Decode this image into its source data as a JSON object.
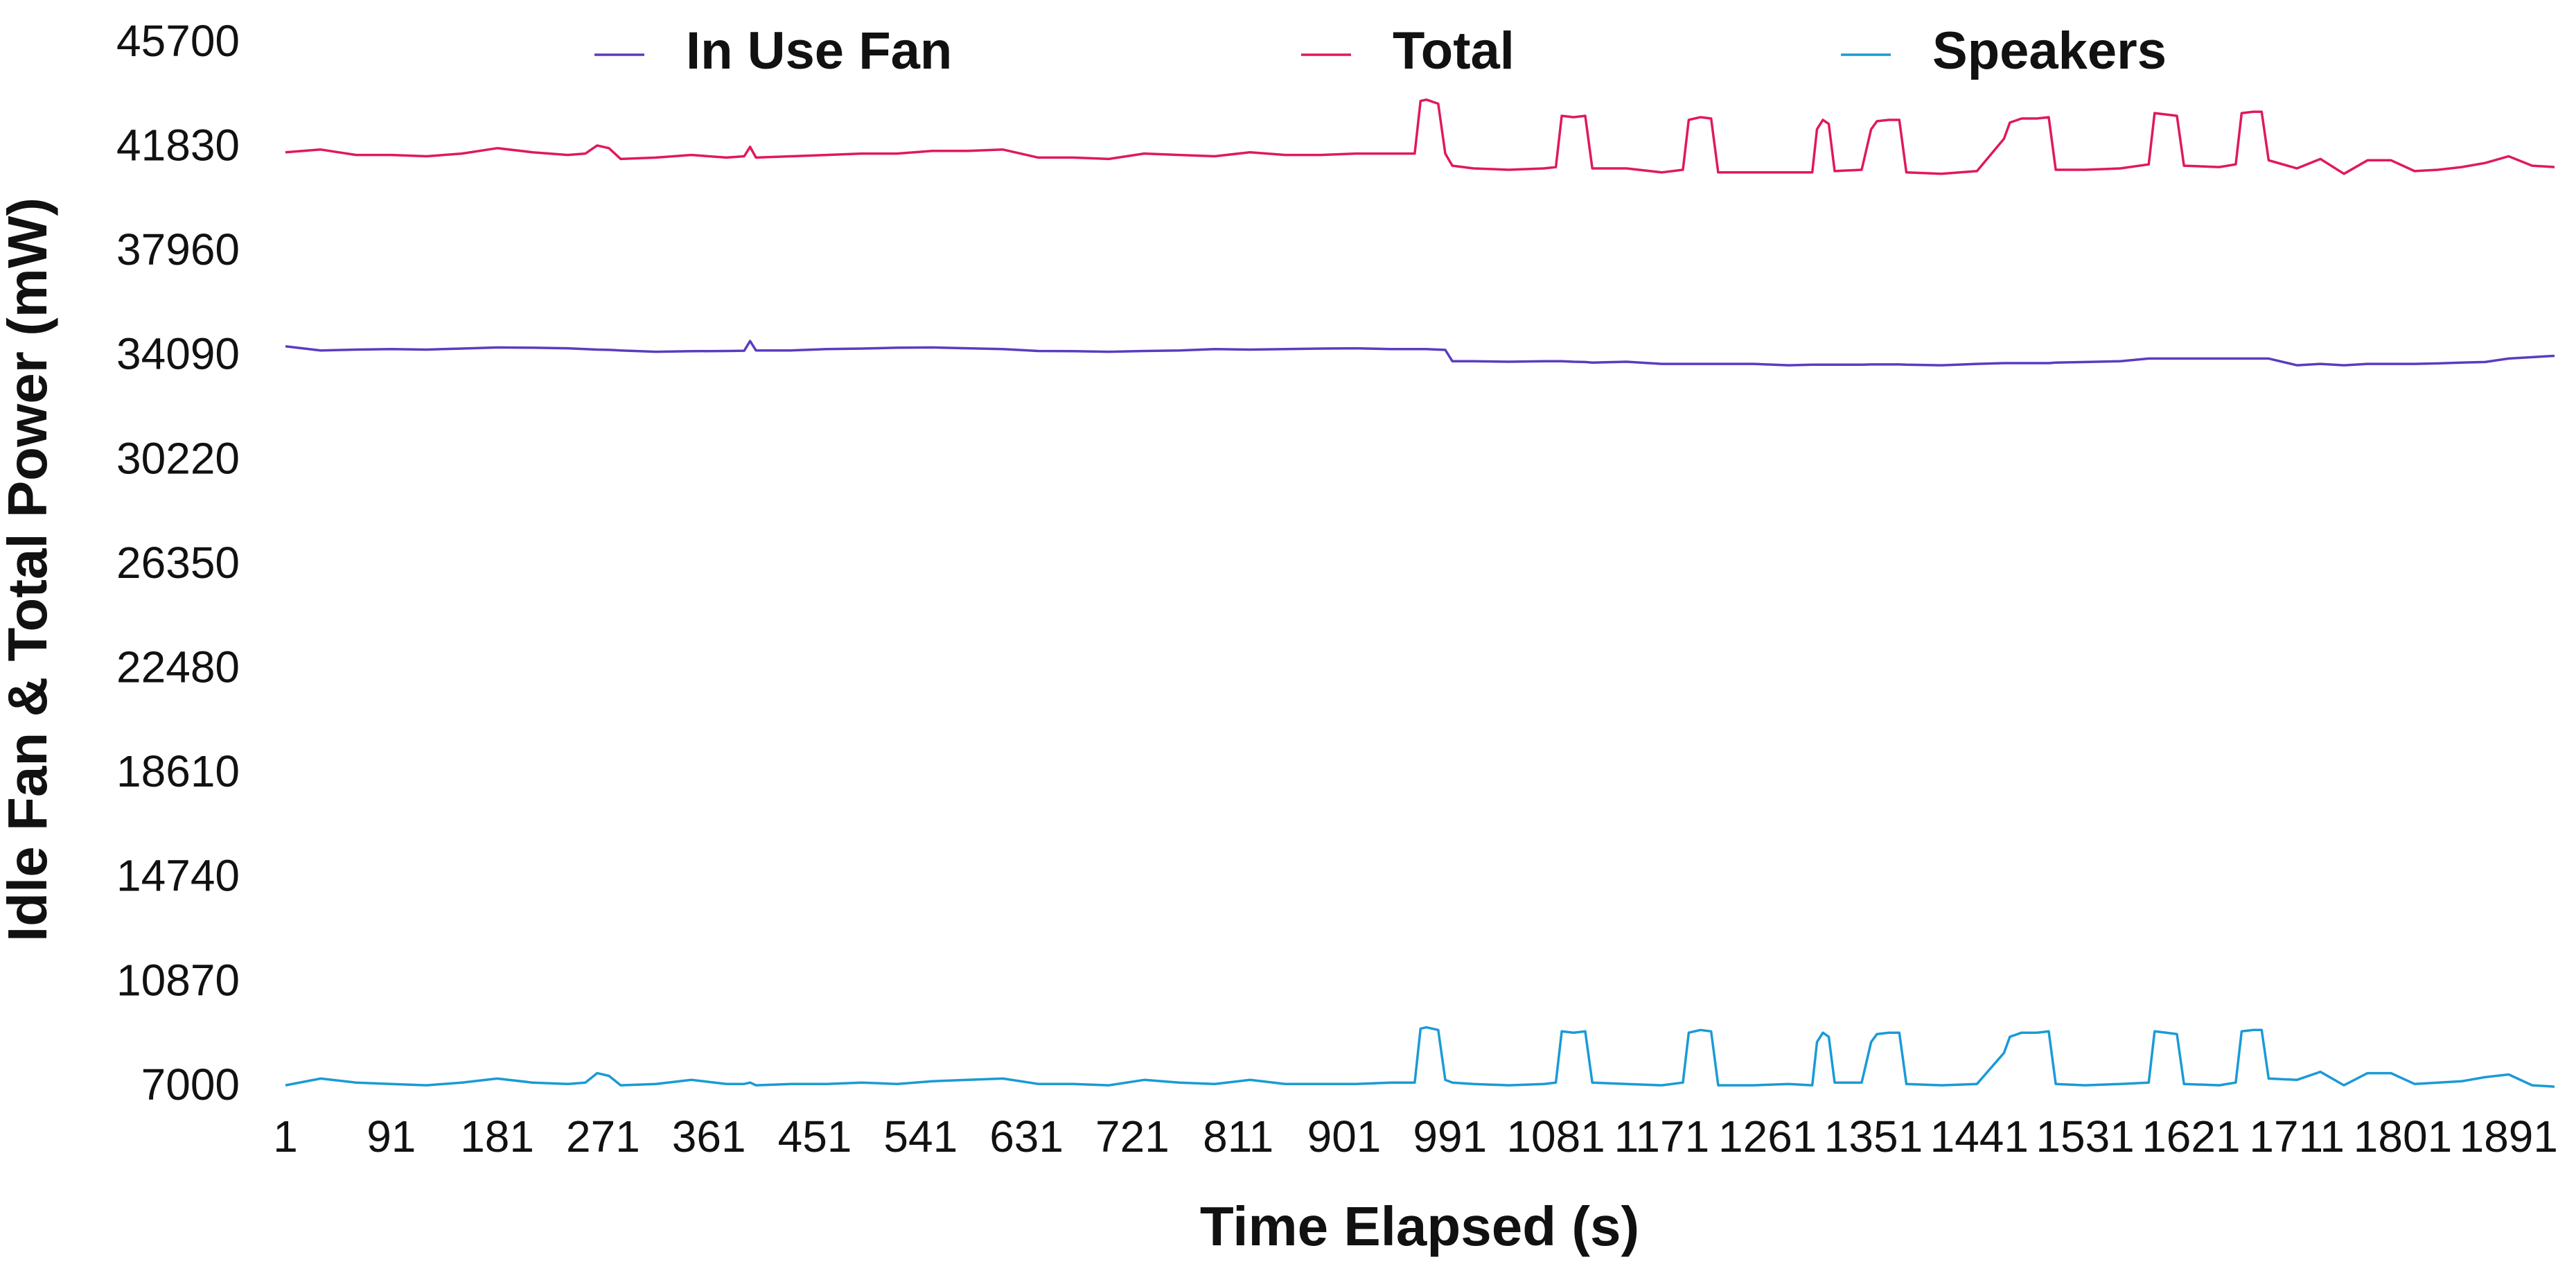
{
  "chart_data": {
    "type": "line",
    "xlabel": "Time Elapsed (s)",
    "ylabel": "Idle Fan & Total Power (mW)",
    "legend": "top",
    "grid": false,
    "xlim": [
      1,
      1930
    ],
    "xticks": [
      1,
      91,
      181,
      271,
      361,
      451,
      541,
      631,
      721,
      811,
      901,
      991,
      1081,
      1171,
      1261,
      1351,
      1441,
      1531,
      1621,
      1711,
      1801,
      1891
    ],
    "ylim": [
      7000,
      45700
    ],
    "yticks": [
      7000,
      10870,
      14740,
      18610,
      22480,
      26350,
      30220,
      34090,
      37960,
      41830,
      45700
    ],
    "x": [
      1,
      31,
      61,
      91,
      121,
      151,
      181,
      211,
      241,
      256,
      266,
      276,
      286,
      316,
      346,
      376,
      391,
      396,
      401,
      431,
      461,
      491,
      521,
      551,
      581,
      611,
      641,
      671,
      701,
      731,
      761,
      791,
      821,
      851,
      881,
      911,
      941,
      961,
      966,
      971,
      981,
      987,
      993,
      1011,
      1041,
      1071,
      1081,
      1086,
      1096,
      1106,
      1112,
      1141,
      1171,
      1189,
      1194,
      1204,
      1213,
      1219,
      1249,
      1279,
      1299,
      1303,
      1308,
      1313,
      1318,
      1341,
      1349,
      1354,
      1364,
      1373,
      1379,
      1409,
      1439,
      1462,
      1467,
      1477,
      1490,
      1500,
      1506,
      1531,
      1561,
      1585,
      1590,
      1600,
      1609,
      1615,
      1645,
      1659,
      1664,
      1674,
      1681,
      1687,
      1711,
      1731,
      1751,
      1771,
      1791,
      1811,
      1831,
      1851,
      1871,
      1891,
      1911,
      1930
    ],
    "series": [
      {
        "name": "In Use Fan",
        "color": "#5a3cc0",
        "values": [
          34500,
          34350,
          34380,
          34400,
          34380,
          34420,
          34460,
          34450,
          34430,
          34400,
          34380,
          34370,
          34350,
          34300,
          34320,
          34330,
          34340,
          34700,
          34350,
          34350,
          34400,
          34420,
          34450,
          34460,
          34430,
          34400,
          34330,
          34320,
          34300,
          34330,
          34350,
          34400,
          34380,
          34400,
          34420,
          34430,
          34400,
          34400,
          34400,
          34400,
          34380,
          34370,
          33950,
          33950,
          33930,
          33950,
          33950,
          33950,
          33930,
          33920,
          33900,
          33930,
          33850,
          33850,
          33850,
          33850,
          33850,
          33850,
          33850,
          33800,
          33820,
          33820,
          33820,
          33820,
          33820,
          33820,
          33830,
          33830,
          33830,
          33830,
          33820,
          33800,
          33850,
          33880,
          33880,
          33880,
          33880,
          33880,
          33900,
          33920,
          33950,
          34050,
          34050,
          34050,
          34050,
          34050,
          34050,
          34050,
          34050,
          34050,
          34050,
          34050,
          33800,
          33850,
          33800,
          33850,
          33850,
          33850,
          33870,
          33900,
          33920,
          34050,
          34100,
          34150
        ]
      },
      {
        "name": "Total",
        "color": "#e0195a",
        "values": [
          41700,
          41800,
          41600,
          41600,
          41550,
          41650,
          41850,
          41700,
          41600,
          41650,
          41950,
          41850,
          41450,
          41500,
          41600,
          41500,
          41550,
          41900,
          41500,
          41550,
          41600,
          41650,
          41650,
          41750,
          41750,
          41800,
          41500,
          41500,
          41450,
          41650,
          41600,
          41550,
          41700,
          41600,
          41600,
          41650,
          41650,
          41650,
          43600,
          43650,
          43500,
          41650,
          41200,
          41100,
          41050,
          41100,
          41150,
          43050,
          43000,
          43050,
          41100,
          41100,
          40950,
          41050,
          42900,
          43000,
          42950,
          40950,
          40950,
          40950,
          40950,
          42550,
          42900,
          42750,
          41000,
          41050,
          42550,
          42850,
          42900,
          42900,
          40950,
          40900,
          41000,
          42200,
          42800,
          42950,
          42950,
          43000,
          41050,
          41050,
          41100,
          41250,
          43150,
          43100,
          43050,
          41200,
          41150,
          41250,
          43150,
          43200,
          43200,
          41400,
          41100,
          41450,
          40900,
          41400,
          41400,
          41000,
          41050,
          41150,
          41300,
          41550,
          41200,
          41150
        ]
      },
      {
        "name": "Speakers",
        "color": "#1a9ad6",
        "values": [
          7100,
          7350,
          7200,
          7150,
          7100,
          7200,
          7350,
          7200,
          7150,
          7200,
          7550,
          7450,
          7100,
          7150,
          7300,
          7150,
          7150,
          7200,
          7100,
          7150,
          7150,
          7200,
          7150,
          7250,
          7300,
          7350,
          7150,
          7150,
          7100,
          7300,
          7200,
          7150,
          7300,
          7150,
          7150,
          7150,
          7200,
          7200,
          9200,
          9250,
          9150,
          7300,
          7200,
          7150,
          7100,
          7150,
          7200,
          9100,
          9050,
          9100,
          7200,
          7150,
          7100,
          7200,
          9050,
          9150,
          9100,
          7100,
          7100,
          7150,
          7100,
          8700,
          9050,
          8900,
          7200,
          7200,
          8700,
          9000,
          9050,
          9050,
          7150,
          7100,
          7150,
          8300,
          8900,
          9050,
          9050,
          9100,
          7150,
          7100,
          7150,
          7200,
          9100,
          9050,
          9000,
          7150,
          7100,
          7200,
          9100,
          9150,
          9150,
          7350,
          7300,
          7600,
          7100,
          7550,
          7550,
          7150,
          7200,
          7250,
          7400,
          7500,
          7100,
          7050
        ]
      }
    ]
  }
}
